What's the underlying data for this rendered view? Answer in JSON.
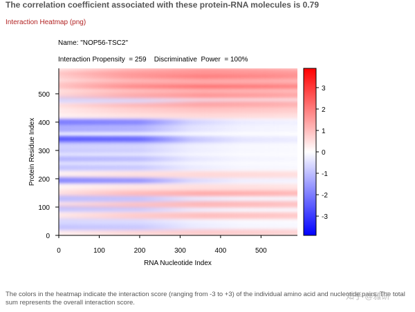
{
  "header": {
    "title": "The correlation coefficient associated with these protein-RNA molecules is 0.79",
    "link_label": "Interaction Heatmap (png)"
  },
  "figure": {
    "name_line": "Name: \"NOP56-TSC2\"",
    "stats_line": "Interaction Propensity  = 259    Discriminative  Power  = 100%",
    "footer": "The colors in the heatmap indicate the interaction score (ranging from -3 to +3) of the individual amino acid and nucleotide pairs. The total sum represents the overall interaction score.",
    "watermark": "知乎 @雅研"
  },
  "chart_data": {
    "type": "heatmap",
    "title": "Name: \"NOP56-TSC2\"",
    "xlabel": "RNA Nucleotide Index",
    "ylabel": "Protein Residue Index",
    "xlim": [
      0,
      590
    ],
    "ylim": [
      0,
      590
    ],
    "xticks": [
      0,
      100,
      200,
      300,
      400,
      500
    ],
    "yticks": [
      0,
      100,
      200,
      300,
      400,
      500
    ],
    "zlim": [
      -3.9,
      3.9
    ],
    "colorbar_ticks": [
      -3,
      -2,
      -1,
      0,
      1,
      2,
      3
    ],
    "colorbar_labels": [
      "-3",
      "-2",
      "-1",
      "0",
      "1",
      "2",
      "3"
    ],
    "colormap": [
      "#0000ff",
      "#ffffff",
      "#ff0000"
    ],
    "row_bands": [
      {
        "residue": 10,
        "value": 0.8,
        "x_profile": "red-right"
      },
      {
        "residue": 30,
        "value": -0.9,
        "x_profile": "blue-left"
      },
      {
        "residue": 50,
        "value": -0.6,
        "x_profile": "blue-left"
      },
      {
        "residue": 70,
        "value": 1.0,
        "x_profile": "red-right"
      },
      {
        "residue": 95,
        "value": -0.9,
        "x_profile": "blue-left"
      },
      {
        "residue": 110,
        "value": 1.1,
        "x_profile": "red-right"
      },
      {
        "residue": 130,
        "value": -1.0,
        "x_profile": "blue-left"
      },
      {
        "residue": 150,
        "value": 1.3,
        "x_profile": "red-right"
      },
      {
        "residue": 170,
        "value": 0.5,
        "x_profile": "red-right"
      },
      {
        "residue": 195,
        "value": -1.8,
        "x_profile": "blue-left"
      },
      {
        "residue": 215,
        "value": 0.6,
        "x_profile": "red-right"
      },
      {
        "residue": 240,
        "value": -0.9,
        "x_profile": "blue-left"
      },
      {
        "residue": 270,
        "value": -1.1,
        "x_profile": "blue-left"
      },
      {
        "residue": 300,
        "value": -0.8,
        "x_profile": "blue-left"
      },
      {
        "residue": 325,
        "value": -0.8,
        "x_profile": "blue-left"
      },
      {
        "residue": 340,
        "value": -2.5,
        "x_profile": "blue-left"
      },
      {
        "residue": 375,
        "value": -1.3,
        "x_profile": "blue-left"
      },
      {
        "residue": 400,
        "value": -2.0,
        "x_profile": "blue-left"
      },
      {
        "residue": 425,
        "value": 0.6,
        "x_profile": "red-right"
      },
      {
        "residue": 445,
        "value": 0.9,
        "x_profile": "red-right"
      },
      {
        "residue": 465,
        "value": 1.4,
        "x_profile": "red-right"
      },
      {
        "residue": 480,
        "value": -0.6,
        "x_profile": "blue-left"
      },
      {
        "residue": 495,
        "value": 1.6,
        "x_profile": "red-right"
      },
      {
        "residue": 515,
        "value": 1.2,
        "x_profile": "red-right"
      },
      {
        "residue": 530,
        "value": 2.2,
        "x_profile": "red-right"
      },
      {
        "residue": 545,
        "value": 1.3,
        "x_profile": "red-right"
      },
      {
        "residue": 565,
        "value": 2.0,
        "x_profile": "red-right"
      },
      {
        "residue": 580,
        "value": 1.6,
        "x_profile": "red-right"
      }
    ]
  }
}
